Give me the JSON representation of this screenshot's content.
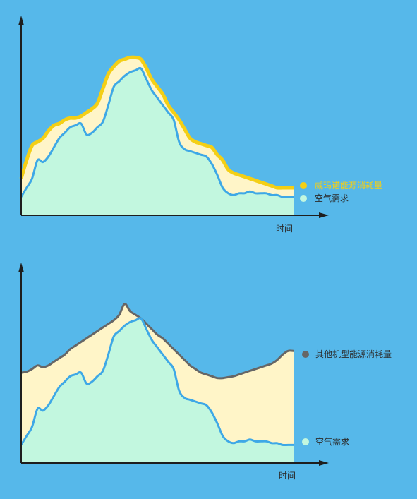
{
  "chart_data": [
    {
      "type": "area",
      "xlabel": "时间",
      "ylabel": "",
      "x": [
        0,
        2,
        4,
        6,
        8,
        10,
        12,
        14,
        16,
        18,
        20,
        22,
        24,
        26,
        28,
        30,
        32,
        34,
        36,
        38,
        40,
        42,
        44,
        46,
        48,
        50,
        52,
        54,
        56,
        58,
        60,
        62,
        64,
        66,
        68,
        70,
        72,
        74,
        76,
        78,
        80,
        82,
        84,
        86,
        88,
        90,
        92,
        94,
        96,
        98,
        100
      ],
      "series": [
        {
          "name": "威玛诺能源消耗量",
          "color": "#f4cf15",
          "fill": "#fff5c8",
          "values": [
            0.2,
            0.3,
            0.38,
            0.4,
            0.42,
            0.46,
            0.49,
            0.5,
            0.52,
            0.53,
            0.53,
            0.54,
            0.56,
            0.58,
            0.61,
            0.69,
            0.77,
            0.81,
            0.84,
            0.85,
            0.86,
            0.86,
            0.85,
            0.8,
            0.74,
            0.7,
            0.66,
            0.6,
            0.56,
            0.52,
            0.47,
            0.42,
            0.4,
            0.39,
            0.38,
            0.37,
            0.33,
            0.3,
            0.25,
            0.23,
            0.22,
            0.21,
            0.2,
            0.19,
            0.18,
            0.17,
            0.16,
            0.15,
            0.15,
            0.15,
            0.15
          ]
        },
        {
          "name": "空气需求",
          "color": "#3ea8e6",
          "fill": "#c2f7df",
          "values": [
            0.1,
            0.15,
            0.2,
            0.3,
            0.29,
            0.32,
            0.37,
            0.42,
            0.45,
            0.48,
            0.49,
            0.5,
            0.44,
            0.45,
            0.48,
            0.51,
            0.6,
            0.7,
            0.73,
            0.76,
            0.78,
            0.79,
            0.8,
            0.74,
            0.68,
            0.64,
            0.6,
            0.56,
            0.52,
            0.4,
            0.36,
            0.35,
            0.34,
            0.33,
            0.32,
            0.28,
            0.22,
            0.15,
            0.12,
            0.11,
            0.12,
            0.12,
            0.13,
            0.12,
            0.12,
            0.12,
            0.11,
            0.11,
            0.1,
            0.1,
            0.1
          ]
        }
      ]
    },
    {
      "type": "area",
      "xlabel": "时间",
      "ylabel": "",
      "x": [
        0,
        2,
        4,
        6,
        8,
        10,
        12,
        14,
        16,
        18,
        20,
        22,
        24,
        26,
        28,
        30,
        32,
        34,
        36,
        38,
        40,
        42,
        44,
        46,
        48,
        50,
        52,
        54,
        56,
        58,
        60,
        62,
        64,
        66,
        68,
        70,
        72,
        74,
        76,
        78,
        80,
        82,
        84,
        86,
        88,
        90,
        92,
        94,
        96,
        98,
        100
      ],
      "series": [
        {
          "name": "其他机型能源消耗量",
          "color": "#666666",
          "fill": "#fff5c8",
          "values": [
            0.5,
            0.505,
            0.52,
            0.54,
            0.53,
            0.54,
            0.56,
            0.58,
            0.6,
            0.63,
            0.65,
            0.67,
            0.69,
            0.71,
            0.73,
            0.75,
            0.77,
            0.79,
            0.82,
            0.88,
            0.84,
            0.82,
            0.8,
            0.77,
            0.74,
            0.71,
            0.69,
            0.66,
            0.63,
            0.6,
            0.57,
            0.54,
            0.52,
            0.5,
            0.49,
            0.48,
            0.47,
            0.47,
            0.475,
            0.48,
            0.49,
            0.5,
            0.51,
            0.52,
            0.53,
            0.54,
            0.55,
            0.57,
            0.6,
            0.62,
            0.62
          ]
        },
        {
          "name": "空气需求",
          "color": "#3ea8e6",
          "fill": "#c2f7df",
          "values": [
            0.1,
            0.15,
            0.2,
            0.3,
            0.29,
            0.32,
            0.37,
            0.42,
            0.45,
            0.48,
            0.49,
            0.5,
            0.44,
            0.45,
            0.48,
            0.51,
            0.6,
            0.7,
            0.73,
            0.76,
            0.78,
            0.79,
            0.8,
            0.74,
            0.68,
            0.64,
            0.6,
            0.56,
            0.52,
            0.4,
            0.36,
            0.35,
            0.34,
            0.33,
            0.32,
            0.28,
            0.22,
            0.15,
            0.12,
            0.11,
            0.12,
            0.12,
            0.13,
            0.12,
            0.12,
            0.12,
            0.11,
            0.11,
            0.1,
            0.1,
            0.1
          ]
        }
      ]
    }
  ]
}
